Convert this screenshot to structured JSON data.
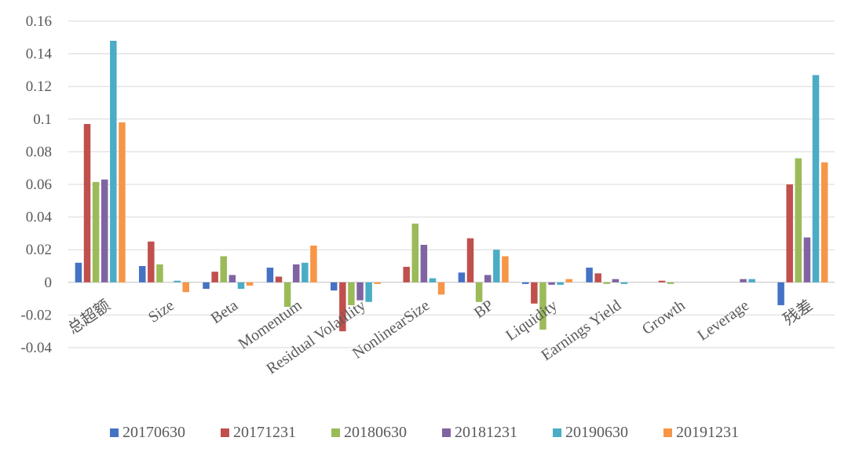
{
  "chart_data": {
    "type": "bar",
    "title": "",
    "xlabel": "",
    "ylabel": "",
    "ylim": [
      -0.04,
      0.16
    ],
    "yticks": [
      0.16,
      0.14,
      0.12,
      0.1,
      0.08,
      0.06,
      0.04,
      0.02,
      0,
      -0.02,
      -0.04
    ],
    "ytick_labels": [
      "0.16",
      "0.14",
      "0.12",
      "0.1",
      "0.08",
      "0.06",
      "0.04",
      "0.02",
      "0",
      "-0.02",
      "-0.04"
    ],
    "grid": true,
    "legend_position": "bottom",
    "categories": [
      "总超额",
      "Size",
      "Beta",
      "Momentum",
      "Residual Volatility",
      "NonlinearSize",
      "BP",
      "Liquidity",
      "Earnings Yield",
      "Growth",
      "Leverage",
      "残差"
    ],
    "series": [
      {
        "name": "20170630",
        "color": "#4472C4",
        "values": [
          0.012,
          0.01,
          -0.004,
          0.009,
          -0.005,
          0.0,
          0.006,
          -0.001,
          0.009,
          0.0,
          0.0,
          -0.014
        ]
      },
      {
        "name": "20171231",
        "color": "#C0504D",
        "values": [
          0.097,
          0.025,
          0.0065,
          0.0035,
          -0.03,
          0.0095,
          0.027,
          -0.013,
          0.0055,
          0.001,
          0.0,
          0.06
        ]
      },
      {
        "name": "20180630",
        "color": "#9BBB59",
        "values": [
          0.0615,
          0.011,
          0.016,
          -0.015,
          -0.014,
          0.036,
          -0.012,
          -0.029,
          -0.001,
          -0.001,
          0.0,
          0.076
        ]
      },
      {
        "name": "20181231",
        "color": "#8064A2",
        "values": [
          0.063,
          0.0,
          0.0045,
          0.011,
          -0.011,
          0.023,
          0.0045,
          -0.0015,
          0.002,
          0.0,
          0.002,
          0.0275
        ]
      },
      {
        "name": "20190630",
        "color": "#4BACC6",
        "values": [
          0.148,
          0.001,
          -0.004,
          0.012,
          -0.012,
          0.0025,
          0.02,
          -0.0015,
          -0.001,
          0.0,
          0.002,
          0.127
        ]
      },
      {
        "name": "20191231",
        "color": "#F79646",
        "values": [
          0.098,
          -0.006,
          -0.002,
          0.0225,
          -0.001,
          -0.0075,
          0.016,
          0.002,
          0.0,
          0.0,
          0.0,
          0.0735
        ]
      }
    ]
  }
}
